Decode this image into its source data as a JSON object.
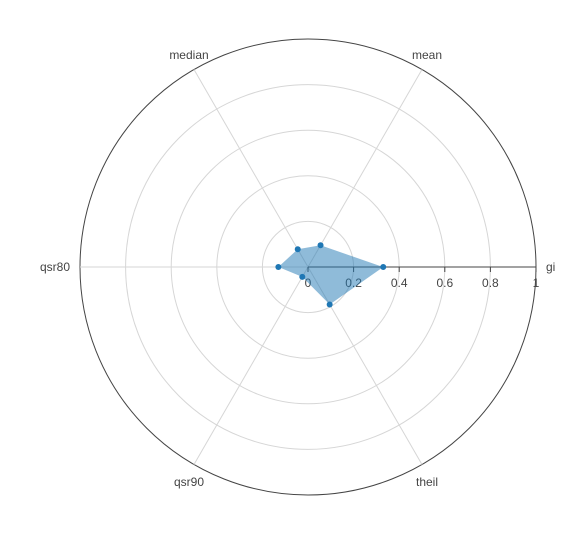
{
  "chart_data": {
    "type": "radar",
    "axes": [
      "gini",
      "mean",
      "median",
      "qsr80",
      "qsr90",
      "theil"
    ],
    "axis_labels_shown": [
      "gi",
      "mean",
      "median",
      "qsr80",
      "qsr90",
      "theil"
    ],
    "radial_range": [
      0,
      1
    ],
    "radial_ticks": [
      0,
      0.2,
      0.4,
      0.6,
      0.8,
      1
    ],
    "radial_tick_labels": [
      "0",
      "0.2",
      "0.4",
      "0.6",
      "0.8",
      "1"
    ],
    "series": [
      {
        "values": [
          0.33,
          0.11,
          0.09,
          0.13,
          0.05,
          0.19
        ],
        "fill_color": "#1f77b4",
        "fill_opacity": 0.5,
        "marker_color": "#1f77b4"
      }
    ],
    "grid": true,
    "legend": "none"
  }
}
